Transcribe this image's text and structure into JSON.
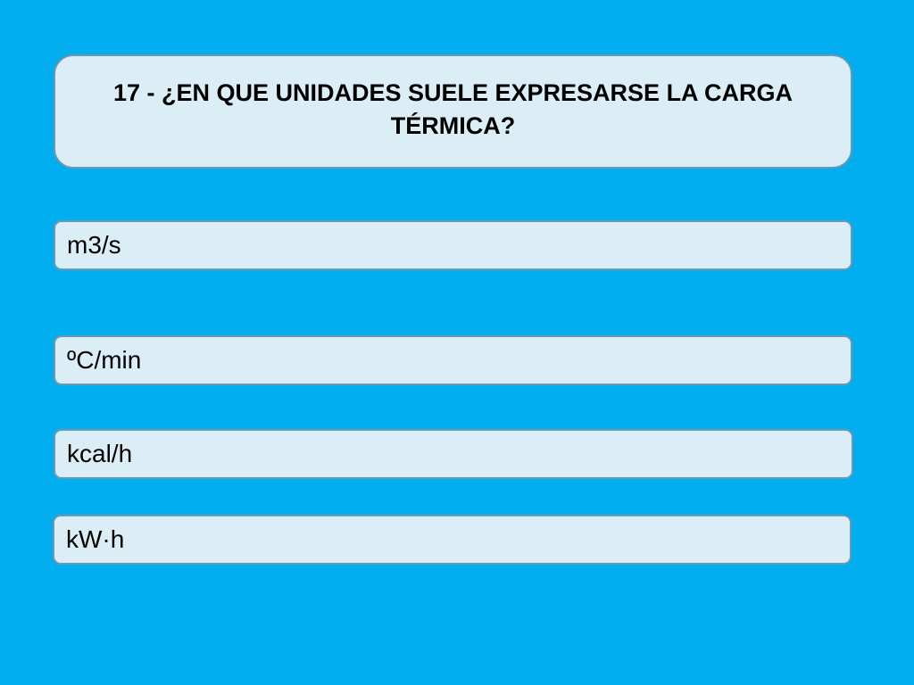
{
  "question": {
    "text": "17 - ¿EN QUE UNIDADES SUELE EXPRESARSE LA CARGA TÉRMICA?"
  },
  "answers": [
    {
      "label": "m3/s"
    },
    {
      "label": "ºC/min"
    },
    {
      "label": "kcal/h"
    },
    {
      "label": "kW·h"
    }
  ],
  "colors": {
    "background": "#00aeef",
    "box_fill": "#dbeef5",
    "box_border": "#6b99b3",
    "text": "#000000"
  }
}
